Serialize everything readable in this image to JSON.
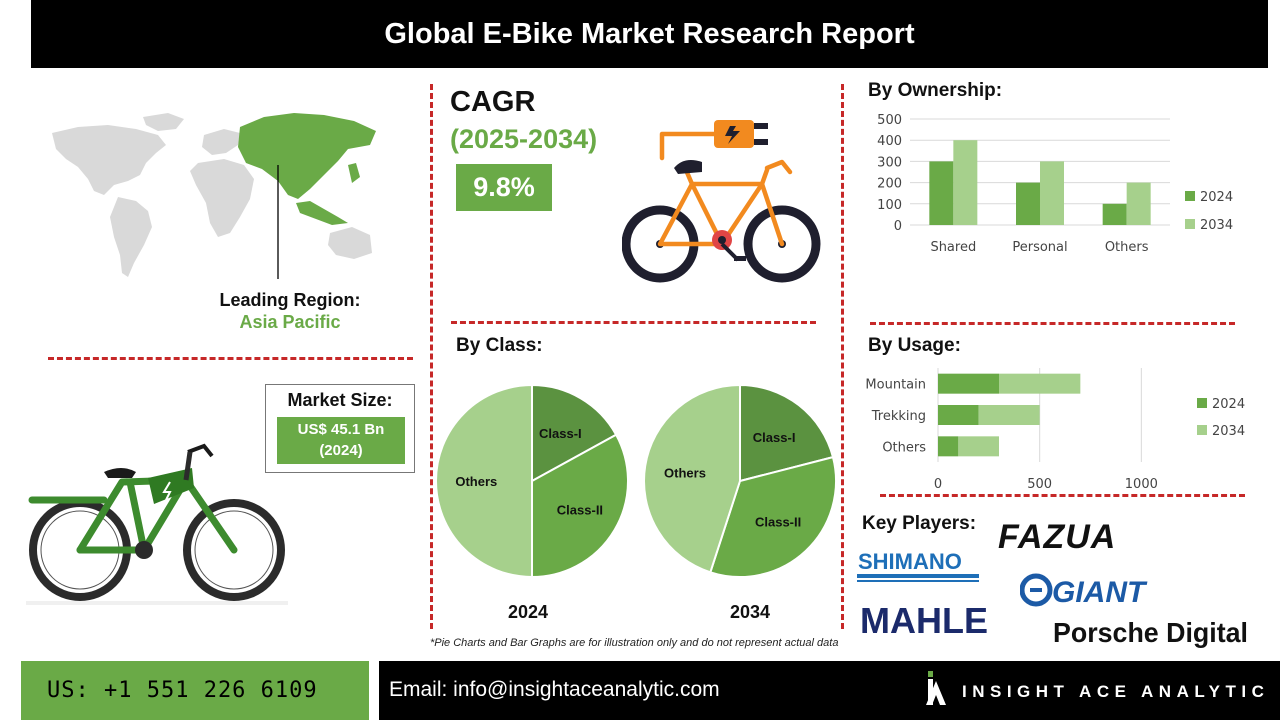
{
  "header": {
    "title": "Global E-Bike Market Research Report"
  },
  "region": {
    "label": "Leading Region:",
    "value": "Asia Pacific"
  },
  "cagr": {
    "title": "CAGR",
    "period": "(2025-2034)",
    "value": "9.8%"
  },
  "market_size": {
    "label": "Market Size:",
    "value_line1": "US$ 45.1 Bn",
    "value_line2": "(2024)"
  },
  "sections": {
    "ownership": "By Ownership:",
    "class": "By Class:",
    "usage": "By Usage:",
    "key_players": "Key Players:"
  },
  "key_players": [
    "FAZUA",
    "SHIMANO",
    "GIANT",
    "MAHLE",
    "Porsche Digital"
  ],
  "note": "*Pie Charts and Bar Graphs are for illustration only and do not represent actual data",
  "footer": {
    "phone": "US: +1 551 226 6109",
    "email": "Email: info@insightaceanalytic.com",
    "brand": "INSIGHT ACE ANALYTIC"
  },
  "colors": {
    "dark_green": "#5b9240",
    "mid_green": "#6aaa47",
    "light_green": "#a6d08c",
    "red_dash": "#c62828"
  },
  "chart_data": [
    {
      "type": "bar",
      "title": "By Ownership:",
      "categories": [
        "Shared",
        "Personal",
        "Others"
      ],
      "series": [
        {
          "name": "2024",
          "values": [
            300,
            200,
            100
          ]
        },
        {
          "name": "2034",
          "values": [
            400,
            300,
            200
          ]
        }
      ],
      "ylim": [
        0,
        500
      ],
      "yticks": [
        0,
        100,
        200,
        300,
        400,
        500
      ],
      "grid": true,
      "legend": "right"
    },
    {
      "type": "pie",
      "title": "By Class:",
      "subtitle": "2024",
      "labels": [
        "Class-I",
        "Class-II",
        "Others"
      ],
      "values": [
        17,
        33,
        50
      ]
    },
    {
      "type": "pie",
      "title": "By Class:",
      "subtitle": "2034",
      "labels": [
        "Class-I",
        "Class-II",
        "Others"
      ],
      "values": [
        21,
        34,
        45
      ]
    },
    {
      "type": "bar",
      "orientation": "horizontal",
      "stacked": true,
      "title": "By Usage:",
      "categories": [
        "Mountain",
        "Trekking",
        "Others"
      ],
      "series": [
        {
          "name": "2024",
          "values": [
            300,
            200,
            100
          ]
        },
        {
          "name": "2034",
          "values": [
            400,
            300,
            200
          ]
        }
      ],
      "xlim": [
        0,
        1200
      ],
      "xticks": [
        0,
        500,
        1000
      ],
      "grid": true,
      "legend": "right"
    }
  ]
}
